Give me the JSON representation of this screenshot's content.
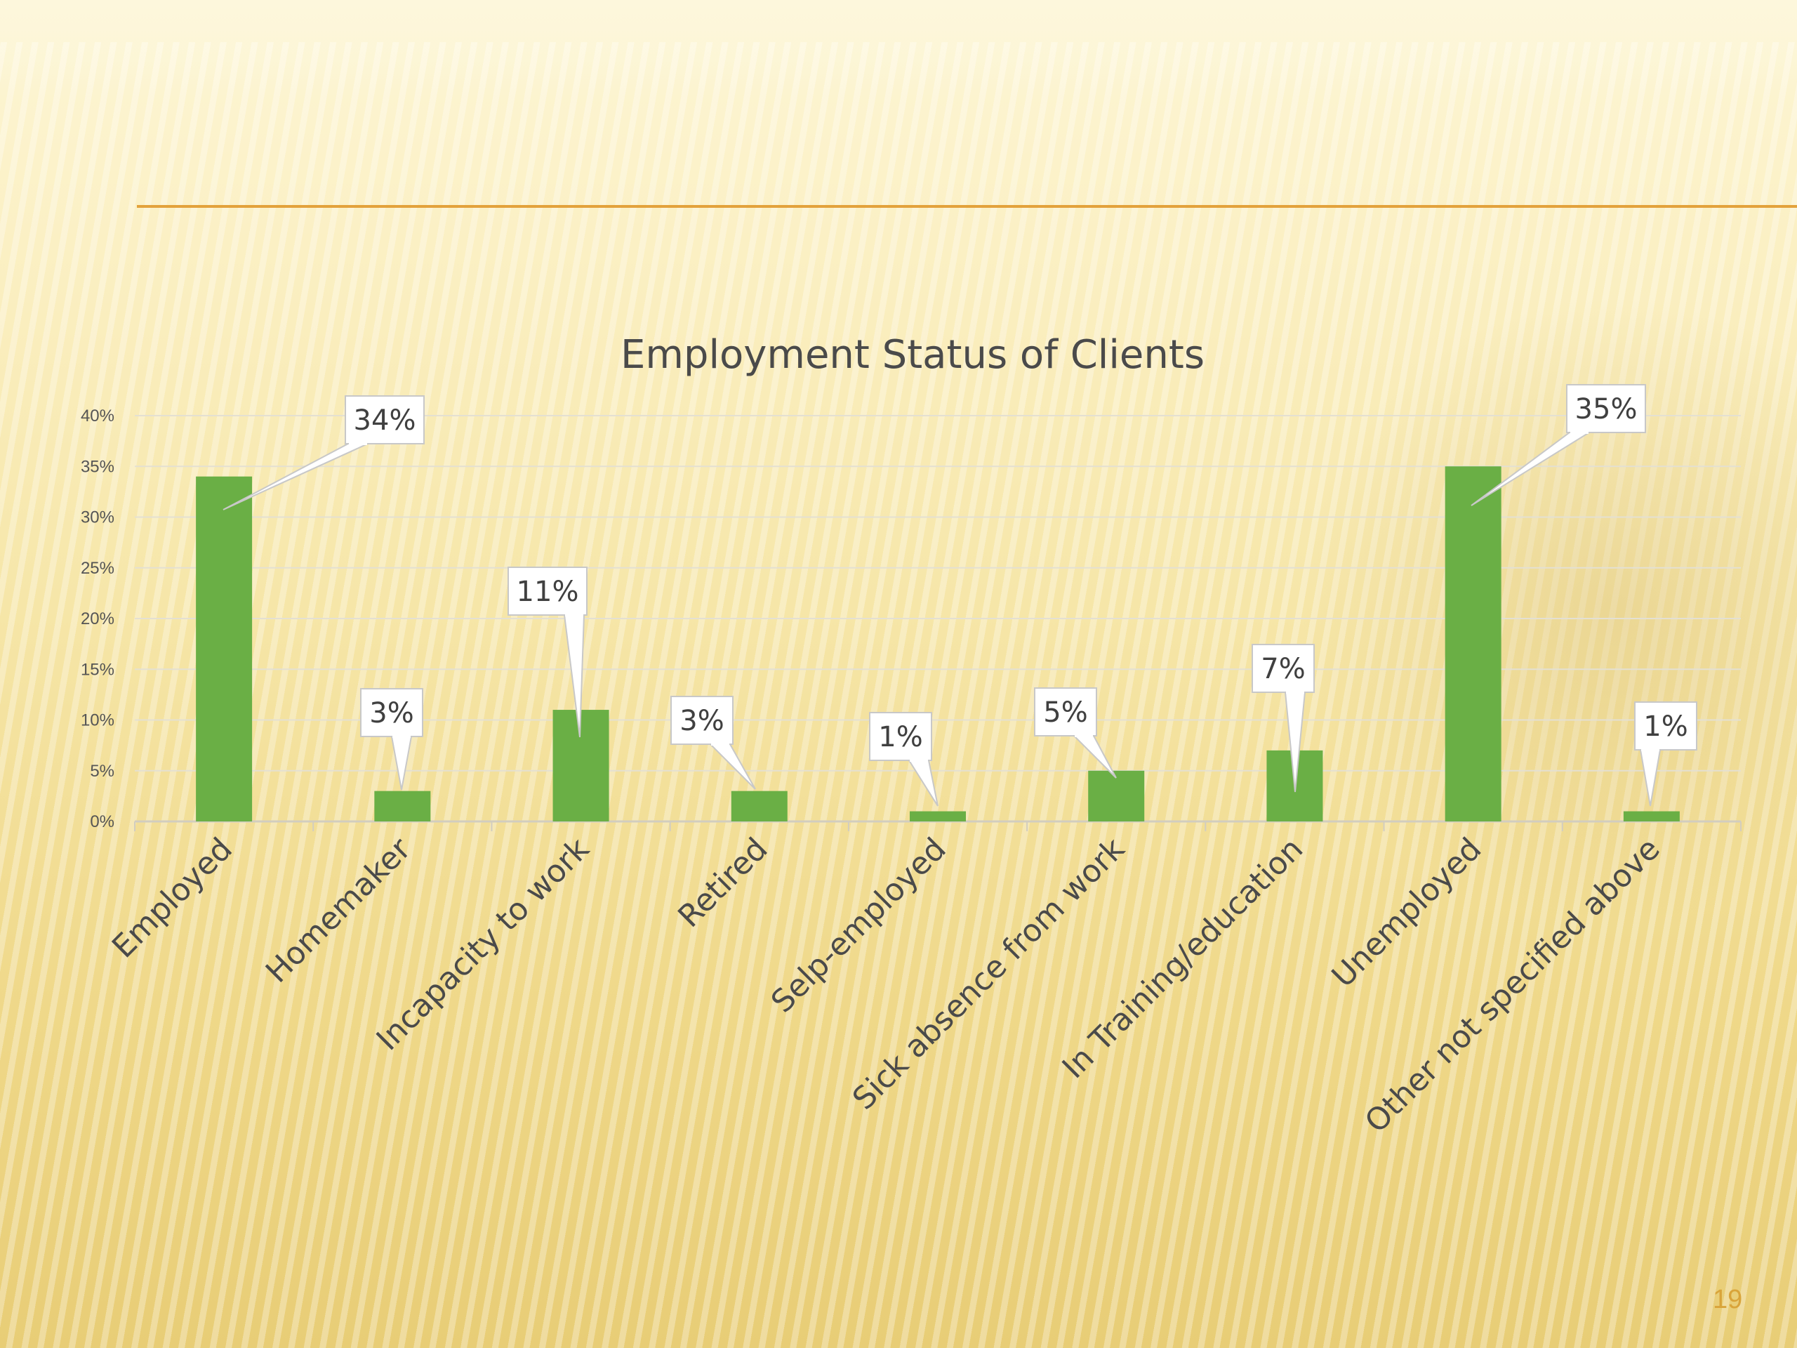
{
  "slide": {
    "page_number": "19",
    "colors": {
      "rule": "#e3a23c",
      "page_number": "#d9a43a",
      "bar": "#6aaf45"
    }
  },
  "chart_data": {
    "type": "bar",
    "title": "Employment Status of Clients",
    "categories": [
      "Employed",
      "Homemaker",
      "Incapacity to work",
      "Retired",
      "Selp-employed",
      "Sick absence from work",
      "In Training/education",
      "Unemployed",
      "Other not specified above"
    ],
    "values": [
      34,
      3,
      11,
      3,
      1,
      5,
      7,
      35,
      1
    ],
    "data_labels": [
      "34%",
      "3%",
      "11%",
      "3%",
      "1%",
      "5%",
      "7%",
      "35%",
      "1%"
    ],
    "yticks": [
      "0%",
      "5%",
      "10%",
      "15%",
      "20%",
      "25%",
      "30%",
      "35%",
      "40%"
    ],
    "ylim": [
      0,
      40
    ],
    "xlabel": "",
    "ylabel": "",
    "grid": true,
    "legend": "none"
  }
}
